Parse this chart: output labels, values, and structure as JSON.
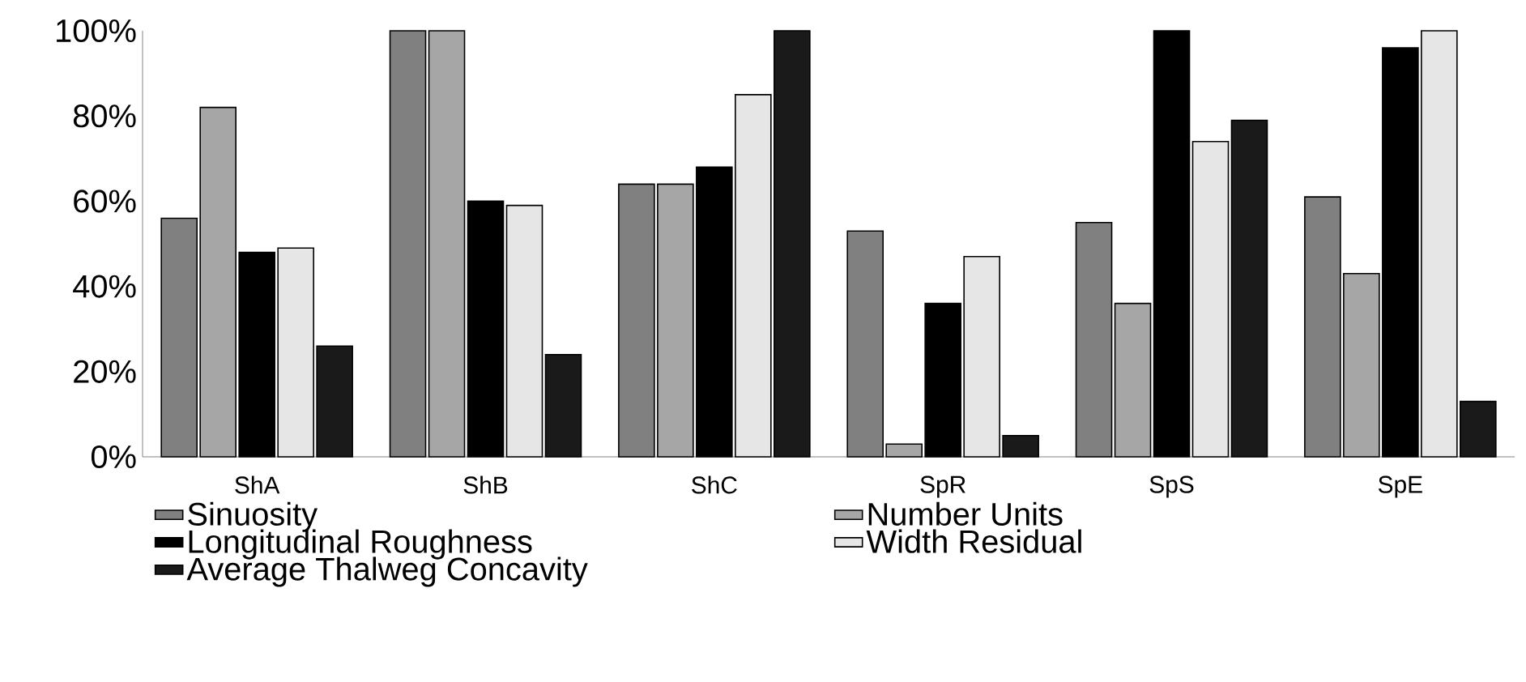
{
  "chart_data": {
    "type": "bar",
    "categories": [
      "ShA",
      "ShB",
      "ShC",
      "SpR",
      "SpS",
      "SpE"
    ],
    "series": [
      {
        "name": "Sinuosity",
        "color": "#808080",
        "values": [
          56,
          100,
          64,
          53,
          55,
          61
        ]
      },
      {
        "name": "Number Units",
        "color": "#a6a6a6",
        "values": [
          82,
          100,
          64,
          3,
          36,
          43
        ]
      },
      {
        "name": "Longitudinal Roughness",
        "color": "#000000",
        "values": [
          48,
          60,
          68,
          36,
          100,
          96
        ]
      },
      {
        "name": "Width Residual",
        "color": "#e6e6e6",
        "values": [
          49,
          59,
          85,
          47,
          74,
          100
        ]
      },
      {
        "name": "Average Thalweg Concavity",
        "color": "#1a1a1a",
        "values": [
          26,
          24,
          100,
          5,
          79,
          13
        ]
      }
    ],
    "ylim": [
      0,
      100
    ],
    "yticks": [
      {
        "value": 0,
        "label": "0%"
      },
      {
        "value": 20,
        "label": "20%"
      },
      {
        "value": 40,
        "label": "40%"
      },
      {
        "value": 60,
        "label": "60%"
      },
      {
        "value": 80,
        "label": "80%"
      },
      {
        "value": 100,
        "label": "100%"
      }
    ],
    "grid": false,
    "legend": "bottom"
  }
}
